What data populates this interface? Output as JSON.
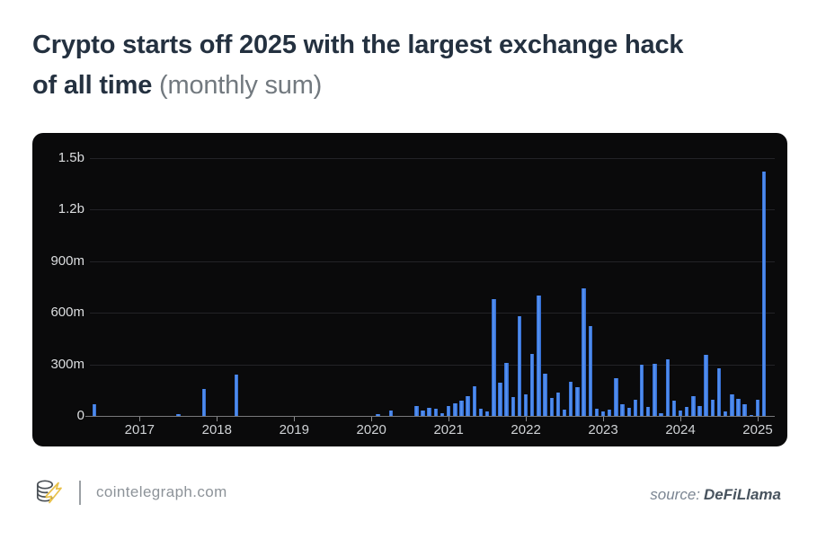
{
  "header": {
    "line1": "Crypto starts off 2025 with the largest exchange hack",
    "line2_bold": "of all time",
    "line2_note": "(monthly sum)"
  },
  "footer": {
    "site": "cointelegraph.com",
    "source_label": "source:",
    "source_name": "DeFiLlama",
    "logo": "cointelegraph-coin-stack-logo"
  },
  "colors": {
    "bar_blue": "#4187ef",
    "panel_bg": "#0a0a0b",
    "title": "#243140",
    "accent_yellow": "#e8c14a"
  },
  "chart_data": {
    "type": "bar",
    "title": "Crypto starts off 2025 with the largest exchange hack of all time (monthly sum)",
    "ylabel": "",
    "xlabel": "",
    "unit": "USD (b = billions, m = millions)",
    "start_month": "2016-06",
    "end_month": "2025-02",
    "ylim_millions": [
      0,
      1500
    ],
    "grid": true,
    "y_ticks": [
      {
        "label": "1.5b",
        "value": 1500
      },
      {
        "label": "1.2b",
        "value": 1200
      },
      {
        "label": "900m",
        "value": 900
      },
      {
        "label": "600m",
        "value": 600
      },
      {
        "label": "300m",
        "value": 300
      },
      {
        "label": "0",
        "value": 0
      }
    ],
    "x_ticks": [
      {
        "label": "2017",
        "month_index": 7
      },
      {
        "label": "2018",
        "month_index": 19
      },
      {
        "label": "2019",
        "month_index": 31
      },
      {
        "label": "2020",
        "month_index": 43
      },
      {
        "label": "2021",
        "month_index": 55
      },
      {
        "label": "2022",
        "month_index": 67
      },
      {
        "label": "2023",
        "month_index": 79
      },
      {
        "label": "2024",
        "month_index": 91
      },
      {
        "label": "2025",
        "month_index": 103
      }
    ],
    "values_note": "monthly hack sums in millions USD, one value per month from 2016-06 to 2025-02",
    "values_millions": [
      70,
      0,
      0,
      0,
      0,
      0,
      0,
      0,
      0,
      0,
      0,
      0,
      0,
      10,
      0,
      0,
      0,
      155,
      0,
      0,
      0,
      0,
      240,
      0,
      0,
      0,
      0,
      0,
      0,
      0,
      0,
      0,
      0,
      0,
      0,
      0,
      0,
      0,
      0,
      0,
      0,
      0,
      0,
      0,
      8,
      0,
      30,
      0,
      0,
      0,
      60,
      30,
      45,
      40,
      15,
      60,
      75,
      90,
      115,
      170,
      40,
      25,
      680,
      195,
      310,
      110,
      580,
      125,
      360,
      700,
      245,
      105,
      135,
      35,
      200,
      165,
      740,
      520,
      40,
      25,
      35,
      220,
      70,
      45,
      95,
      300,
      50,
      305,
      15,
      330,
      90,
      30,
      50,
      115,
      60,
      355,
      95,
      275,
      25,
      125,
      100,
      70,
      5,
      95,
      1420
    ]
  }
}
